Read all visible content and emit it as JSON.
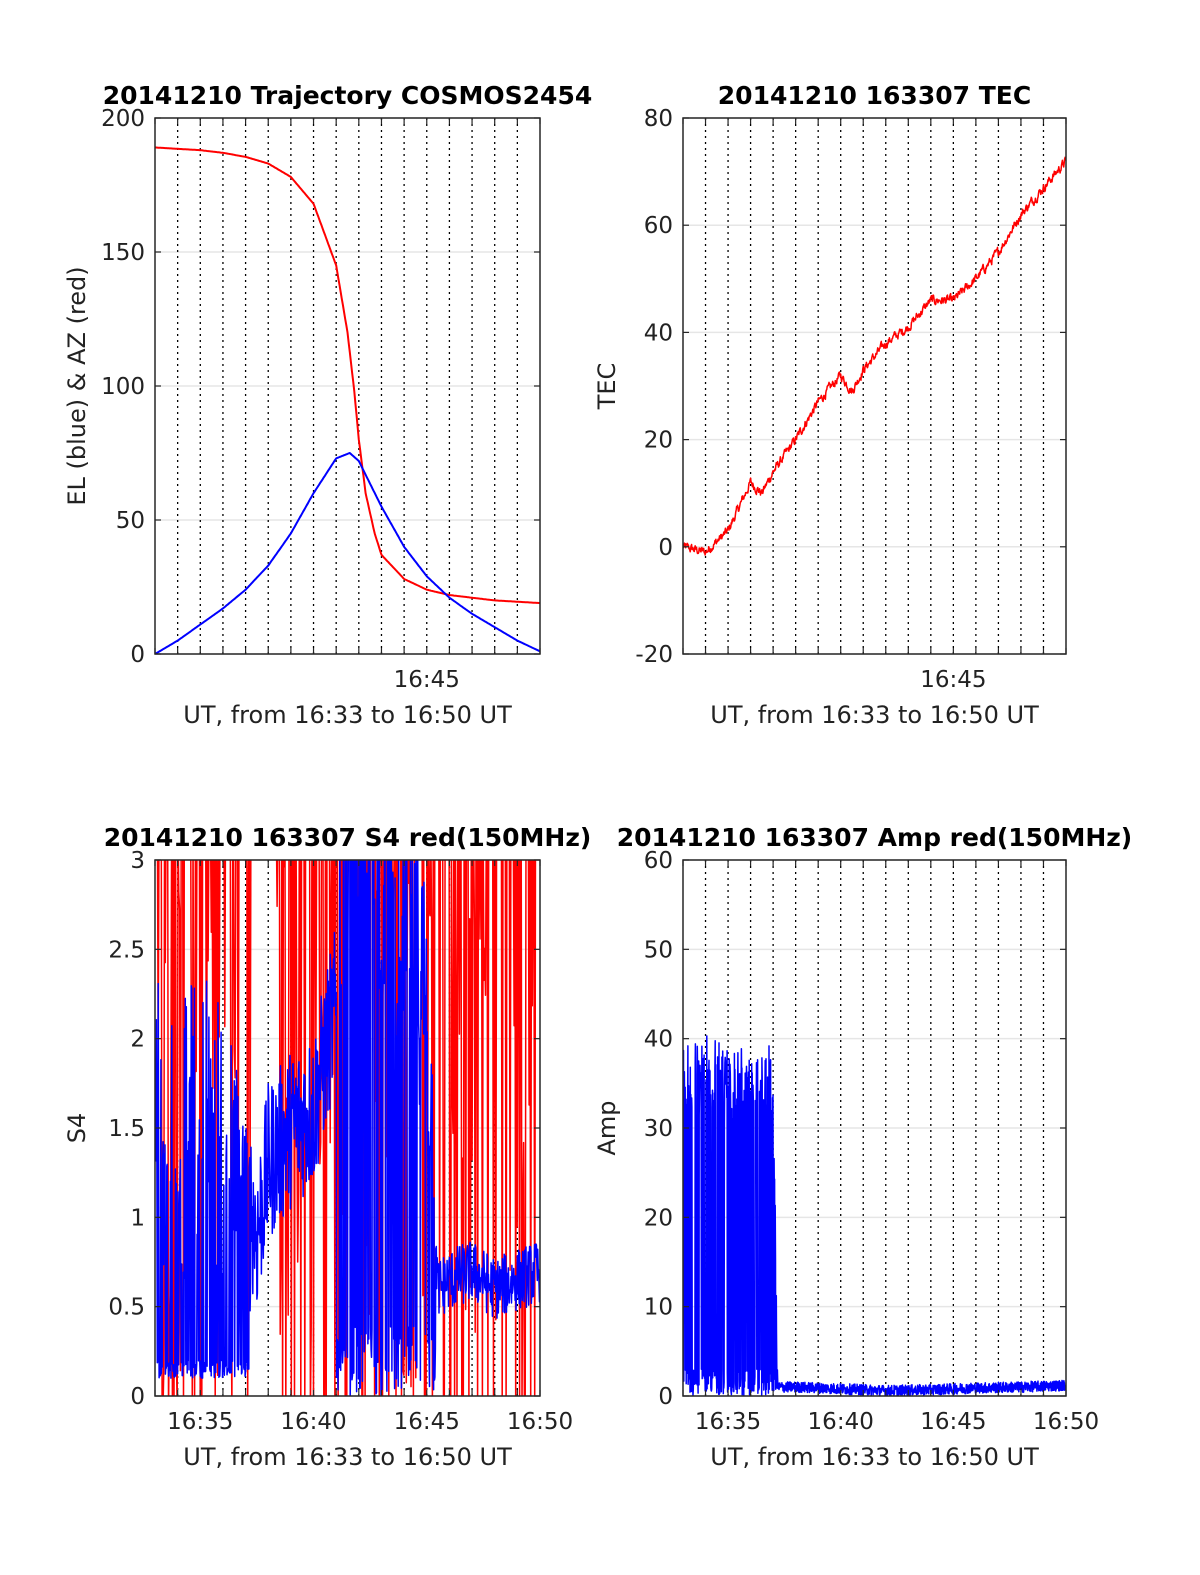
{
  "chart_data": [
    {
      "type": "line",
      "title": "20141210 Trajectory COSMOS2454",
      "xlabel": "UT, from 16:33 to 16:50 UT",
      "ylabel": "EL (blue) & AZ (red)",
      "xlim": [
        "16:33",
        "16:50"
      ],
      "ylim": [
        0,
        200
      ],
      "xticks": [
        "16:45"
      ],
      "yticks": [
        0,
        50,
        100,
        150,
        200
      ],
      "grid": "dotted vertical every 1 min, solid horizontal at y ticks",
      "series": [
        {
          "color": "#ff0000",
          "x": [
            "16:33",
            "16:34",
            "16:35",
            "16:36",
            "16:37",
            "16:38",
            "16:39",
            "16:40",
            "16:41",
            "16:41.5",
            "16:41.8",
            "16:42",
            "16:42.3",
            "16:42.7",
            "16:43",
            "16:44",
            "16:45",
            "16:46",
            "16:47",
            "16:48",
            "16:49",
            "16:50"
          ],
          "values": [
            189,
            188.5,
            188,
            187,
            185.5,
            183,
            178,
            168,
            145,
            120,
            98,
            80,
            60,
            45,
            37,
            28,
            24,
            22,
            21,
            20,
            19.5,
            19
          ]
        },
        {
          "color": "#0000ff",
          "x": [
            "16:33",
            "16:34",
            "16:35",
            "16:36",
            "16:37",
            "16:38",
            "16:39",
            "16:40",
            "16:41",
            "16:41.6",
            "16:42",
            "16:43",
            "16:44",
            "16:45",
            "16:46",
            "16:47",
            "16:48",
            "16:49",
            "16:50"
          ],
          "values": [
            0,
            5,
            11,
            17,
            24,
            33,
            45,
            60,
            73,
            75,
            72,
            55,
            40,
            29,
            21,
            15,
            10,
            5,
            1
          ]
        }
      ]
    },
    {
      "type": "line",
      "title": "20141210 163307 TEC",
      "xlabel": "UT, from 16:33 to 16:50 UT",
      "ylabel": "TEC",
      "xlim": [
        "16:33",
        "16:50"
      ],
      "ylim": [
        -20,
        80
      ],
      "xticks": [
        "16:45"
      ],
      "yticks": [
        -20,
        0,
        20,
        40,
        60,
        80
      ],
      "series": [
        {
          "color": "#ff0000",
          "x": [
            "16:33",
            "16:34",
            "16:35",
            "16:36",
            "16:36.5",
            "16:37",
            "16:38",
            "16:39",
            "16:40",
            "16:40.5",
            "16:41",
            "16:42",
            "16:43",
            "16:44",
            "16:45",
            "16:46",
            "16:47",
            "16:48",
            "16:49",
            "16:50"
          ],
          "values": [
            0,
            -1,
            3,
            12,
            10,
            14,
            20,
            27,
            32,
            29,
            33,
            38,
            41,
            46,
            46,
            50,
            55,
            62,
            67,
            72
          ]
        }
      ]
    },
    {
      "type": "line",
      "title": "20141210 163307 S4 red(150MHz)",
      "xlabel": "UT, from 16:33 to 16:50 UT",
      "ylabel": "S4",
      "xlim": [
        "16:33",
        "16:50"
      ],
      "ylim": [
        0,
        3
      ],
      "xticks": [
        "16:35",
        "16:40",
        "16:45",
        "16:50"
      ],
      "yticks": [
        0,
        0.5,
        1,
        1.5,
        2,
        2.5,
        3
      ],
      "series": [
        {
          "color": "#ff0000",
          "x": [
            "16:33",
            "16:34",
            "16:35",
            "16:36",
            "16:37",
            "16:38",
            "16:39",
            "16:40",
            "16:41",
            "16:42",
            "16:43",
            "16:44",
            "16:45",
            "16:46",
            "16:47",
            "16:48",
            "16:49",
            "16:50"
          ],
          "values": [
            3,
            3,
            3,
            3,
            3,
            3,
            3,
            3,
            3,
            3,
            3,
            3,
            3,
            3,
            3,
            3,
            3,
            3
          ]
        },
        {
          "color": "#0000ff",
          "x": [
            "16:33",
            "16:34",
            "16:35",
            "16:36",
            "16:37",
            "16:37.5",
            "16:38",
            "16:39",
            "16:40",
            "16:41",
            "16:42",
            "16:43",
            "16:44",
            "16:45",
            "16:45.5",
            "16:46",
            "16:47",
            "16:48",
            "16:49",
            "16:50"
          ],
          "values": [
            2.0,
            1.5,
            1.8,
            1.6,
            1.2,
            0.9,
            1.3,
            1.5,
            1.6,
            2.2,
            2.8,
            2.5,
            2.2,
            1.8,
            0.6,
            0.65,
            0.7,
            0.6,
            0.65,
            0.7
          ]
        }
      ]
    },
    {
      "type": "line",
      "title": "20141210 163307 Amp red(150MHz)",
      "xlabel": "UT, from 16:33 to 16:50 UT",
      "ylabel": "Amp",
      "xlim": [
        "16:33",
        "16:50"
      ],
      "ylim": [
        0,
        60
      ],
      "xticks": [
        "16:35",
        "16:40",
        "16:45",
        "16:50"
      ],
      "yticks": [
        0,
        10,
        20,
        30,
        40,
        50,
        60
      ],
      "series": [
        {
          "color": "#0000ff",
          "x": [
            "16:33",
            "16:34",
            "16:35",
            "16:36",
            "16:37",
            "16:37.2",
            "16:38",
            "16:40",
            "16:42",
            "16:44",
            "16:46",
            "16:48",
            "16:50"
          ],
          "values": [
            37,
            38,
            37,
            37,
            38,
            1,
            1,
            0.8,
            0.6,
            0.7,
            0.9,
            1,
            1.2
          ]
        }
      ]
    }
  ]
}
